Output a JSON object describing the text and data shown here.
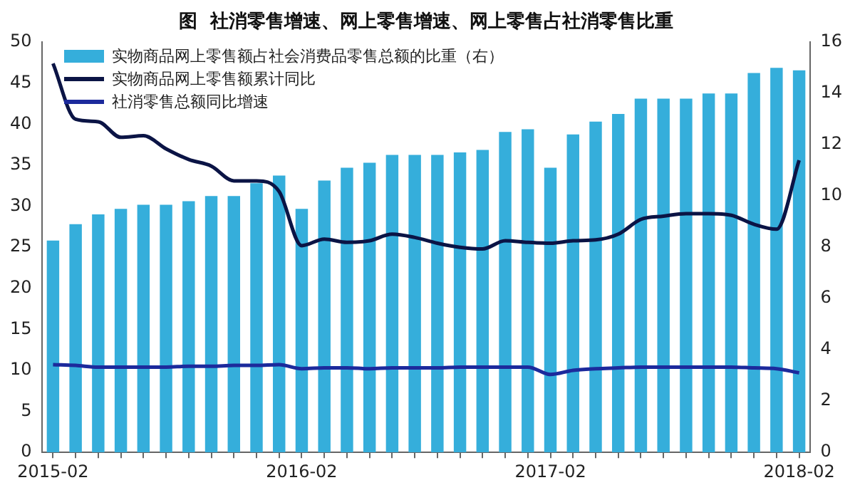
{
  "chart_data": {
    "type": "bar",
    "title": "图  社消零售增速、网上零售增速、网上零售占社消零售比重",
    "categories": [
      "2015-02",
      null,
      null,
      null,
      null,
      null,
      null,
      null,
      null,
      null,
      null,
      "2016-02",
      null,
      null,
      null,
      null,
      null,
      null,
      null,
      null,
      null,
      null,
      "2017-02",
      null,
      null,
      null,
      null,
      null,
      null,
      null,
      null,
      null,
      null,
      "2018-02"
    ],
    "series": [
      {
        "name": "实物商品网上零售额占社会消费品零售总额的比重（右）",
        "axis": "y2",
        "color": "#35aedb",
        "values": [
          8.26,
          8.9,
          9.28,
          9.5,
          9.66,
          9.66,
          9.8,
          10.0,
          10.0,
          10.5,
          10.8,
          9.5,
          10.6,
          11.1,
          11.3,
          11.6,
          11.6,
          11.6,
          11.7,
          11.8,
          12.5,
          12.6,
          11.1,
          12.4,
          12.9,
          13.2,
          13.8,
          13.8,
          13.8,
          14.0,
          14.0,
          14.8,
          15.0,
          14.9
        ]
      },
      {
        "name": "实物商品网上零售额累计同比",
        "type": "line",
        "color": "#0b1445",
        "values": [
          47.4,
          40.6,
          40.3,
          38.4,
          38.6,
          37.0,
          35.7,
          34.9,
          33.1,
          33.1,
          31.8,
          25.2,
          26.0,
          25.6,
          25.8,
          26.6,
          26.2,
          25.5,
          25.0,
          24.8,
          25.8,
          25.6,
          25.5,
          25.8,
          25.9,
          26.6,
          28.4,
          28.8,
          29.1,
          29.1,
          28.9,
          27.8,
          27.2,
          35.6
        ]
      },
      {
        "name": "社消零售总额同比增速",
        "type": "line",
        "color": "#1c2a9c",
        "values": [
          10.7,
          10.6,
          10.4,
          10.4,
          10.4,
          10.4,
          10.5,
          10.5,
          10.6,
          10.6,
          10.7,
          10.2,
          10.3,
          10.3,
          10.2,
          10.3,
          10.3,
          10.3,
          10.4,
          10.4,
          10.4,
          10.4,
          9.5,
          10.0,
          10.2,
          10.3,
          10.4,
          10.4,
          10.4,
          10.4,
          10.4,
          10.3,
          10.2,
          9.7
        ]
      }
    ],
    "ylim": [
      0,
      50
    ],
    "yticks": [
      0,
      5,
      10,
      15,
      20,
      25,
      30,
      35,
      40,
      45,
      50
    ],
    "y2lim": [
      0,
      16
    ],
    "y2ticks": [
      0,
      2,
      4,
      6,
      8,
      10,
      12,
      14,
      16
    ],
    "grid": false,
    "legend": "top left",
    "marker": "none",
    "line_style": "solid"
  }
}
